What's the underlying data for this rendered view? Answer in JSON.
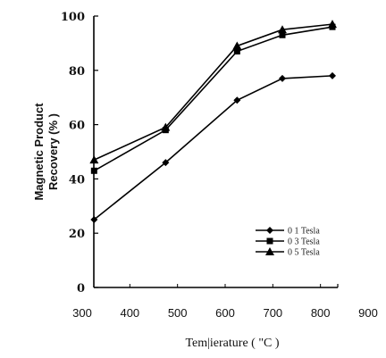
{
  "chart_data": {
    "type": "line",
    "xlabel": "Tem|ierature ( \"C )",
    "ylabel_lines": [
      "Magnetic Product",
      "Recovery (% )"
    ],
    "xlim": [
      300,
      900
    ],
    "ylim": [
      0,
      100
    ],
    "xticks": [
      "300",
      "400",
      "500",
      "600",
      "700",
      "800",
      "900"
    ],
    "yticks": [
      "0",
      "20",
      "40",
      "60",
      "80",
      "100"
    ],
    "grid": false,
    "legend_position": "bottom-right",
    "series": [
      {
        "name": "0 1 Tesla",
        "marker": "diamond",
        "x": [
          325,
          475,
          625,
          720,
          825
        ],
        "y": [
          25,
          46,
          69,
          77,
          78
        ]
      },
      {
        "name": "0 3 Tesla",
        "marker": "square",
        "x": [
          325,
          475,
          625,
          720,
          825
        ],
        "y": [
          43,
          58,
          87,
          93,
          96
        ]
      },
      {
        "name": "0 5 Tesla",
        "marker": "triangle",
        "x": [
          325,
          475,
          625,
          720,
          825
        ],
        "y": [
          47,
          59,
          89,
          95,
          97
        ]
      }
    ]
  }
}
